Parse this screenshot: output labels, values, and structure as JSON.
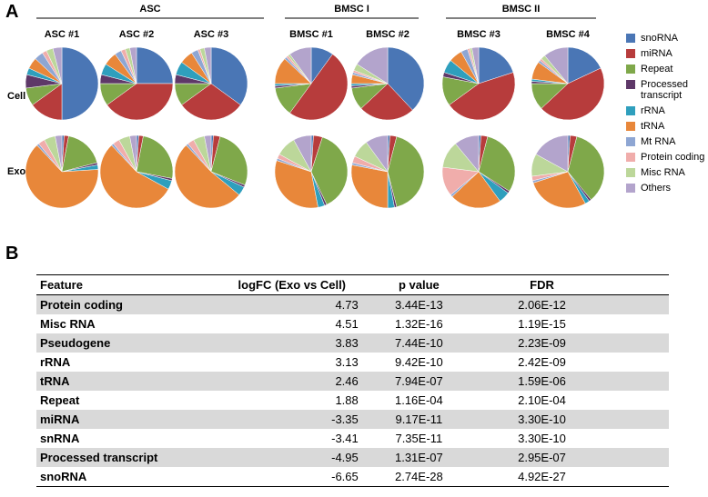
{
  "panel_labels": [
    "A",
    "B"
  ],
  "pie_grid": {
    "groups": [
      {
        "label": "ASC",
        "samples": [
          "ASC #1",
          "ASC #2",
          "ASC #3"
        ]
      },
      {
        "label": "BMSC I",
        "samples": [
          "BMSC #1",
          "BMSC #2"
        ]
      },
      {
        "label": "BMSC II",
        "samples": [
          "BMSC #3",
          "BMSC #4"
        ]
      }
    ],
    "rows": [
      "Cell",
      "Exo"
    ]
  },
  "pie_legend": {
    "categories": [
      "snoRNA",
      "miRNA",
      "Repeat",
      "Processed transcript",
      "rRNA",
      "tRNA",
      "Mt RNA",
      "Protein coding",
      "Misc RNA",
      "Others"
    ],
    "colors": [
      "#4a76b5",
      "#b73c3c",
      "#7fa84a",
      "#5e3868",
      "#2f9fbd",
      "#e8873a",
      "#8ea6d3",
      "#f0adab",
      "#bcd79a",
      "#b3a4cc"
    ]
  },
  "chart_data": [
    {
      "type": "pie",
      "values": [
        50,
        15,
        8,
        6,
        3,
        5,
        4,
        2,
        3,
        4
      ]
    },
    {
      "type": "pie",
      "values": [
        25,
        40,
        10,
        4,
        5,
        6,
        3,
        2,
        2,
        3
      ]
    },
    {
      "type": "pie",
      "values": [
        35,
        30,
        10,
        4,
        6,
        6,
        3,
        1,
        2,
        3
      ]
    },
    {
      "type": "pie",
      "values": [
        10,
        50,
        13,
        1,
        1,
        12,
        1,
        1,
        1,
        10
      ]
    },
    {
      "type": "pie",
      "values": [
        38,
        25,
        10,
        1,
        1,
        4,
        1,
        1,
        3,
        16
      ]
    },
    {
      "type": "pie",
      "values": [
        20,
        45,
        13,
        2,
        6,
        6,
        3,
        1,
        1,
        3
      ]
    },
    {
      "type": "pie",
      "values": [
        18,
        45,
        12,
        1,
        1,
        8,
        1,
        1,
        2,
        11
      ]
    },
    {
      "type": "pie",
      "values": [
        1,
        2,
        18,
        1,
        2,
        64,
        1,
        3,
        5,
        3
      ]
    },
    {
      "type": "pie",
      "values": [
        1,
        2,
        25,
        1,
        4,
        55,
        1,
        3,
        5,
        3
      ]
    },
    {
      "type": "pie",
      "values": [
        1,
        3,
        27,
        1,
        4,
        52,
        1,
        3,
        5,
        3
      ]
    },
    {
      "type": "pie",
      "values": [
        1,
        4,
        38,
        1,
        3,
        33,
        1,
        2,
        9,
        8
      ]
    },
    {
      "type": "pie",
      "values": [
        1,
        3,
        42,
        1,
        3,
        28,
        1,
        3,
        8,
        10
      ]
    },
    {
      "type": "pie",
      "values": [
        1,
        3,
        30,
        1,
        5,
        23,
        1,
        13,
        12,
        11
      ]
    },
    {
      "type": "pie",
      "values": [
        1,
        3,
        35,
        1,
        2,
        28,
        1,
        2,
        10,
        17
      ]
    }
  ],
  "table": {
    "header": [
      "Feature",
      "logFC  (Exo vs Cell)",
      "p value",
      "FDR"
    ],
    "rows": [
      [
        "Protein coding",
        "4.73",
        "3.44E-13",
        "2.06E-12"
      ],
      [
        "Misc RNA",
        "4.51",
        "1.32E-16",
        "1.19E-15"
      ],
      [
        "Pseudogene",
        "3.83",
        "7.44E-10",
        "2.23E-09"
      ],
      [
        "rRNA",
        "3.13",
        "9.42E-10",
        "2.42E-09"
      ],
      [
        "tRNA",
        "2.46",
        "7.94E-07",
        "1.59E-06"
      ],
      [
        "Repeat",
        "1.88",
        "1.16E-04",
        "2.10E-04"
      ],
      [
        "miRNA",
        "-3.35",
        "9.17E-11",
        "3.30E-10"
      ],
      [
        "snRNA",
        "-3.41",
        "7.35E-11",
        "3.30E-10"
      ],
      [
        "Processed transcript",
        "-4.95",
        "1.31E-07",
        "2.95E-07"
      ],
      [
        "snoRNA",
        "-6.65",
        "2.74E-28",
        "4.92E-27"
      ]
    ]
  }
}
